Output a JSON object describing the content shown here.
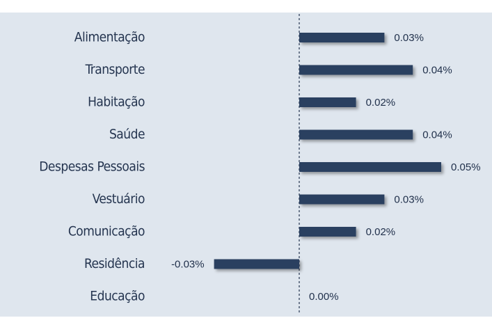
{
  "chart_data": {
    "type": "bar",
    "orientation": "horizontal",
    "categories": [
      "Alimentação",
      "Transporte",
      "Habitação",
      "Saúde",
      "Despesas Pessoais",
      "Vestuário",
      "Comunicação",
      "Residência",
      "Educação"
    ],
    "values": [
      0.03,
      0.04,
      0.02,
      0.04,
      0.05,
      0.03,
      0.02,
      -0.03,
      0.0
    ],
    "value_labels": [
      "0.03%",
      "0.04%",
      "0.02%",
      "0.04%",
      "0.05%",
      "0.03%",
      "0.02%",
      "-0.03%",
      "0.00%"
    ],
    "color": "#2b4161"
  }
}
